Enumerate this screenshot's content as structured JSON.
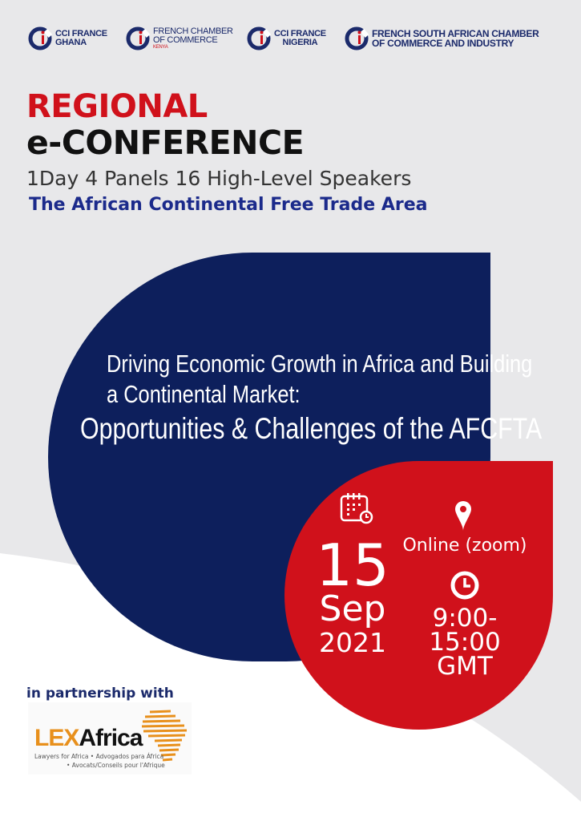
{
  "logos": [
    {
      "line1": "CCI FRANCE",
      "line2": "GHANA"
    },
    {
      "line1": "FRENCH CHAMBER",
      "line2": "OF COMMERCE",
      "line3": "KENYA"
    },
    {
      "line1": "CCI FRANCE",
      "line2": "NIGERIA"
    },
    {
      "line1": "FRENCH SOUTH AFRICAN CHAMBER",
      "line2": "OF COMMERCE AND INDUSTRY"
    }
  ],
  "header": {
    "title_red": "REGIONAL",
    "title_black": "e-CONFERENCE",
    "subtitle": "1Day 4 Panels 16 High-Level Speakers",
    "theme": "The African Continental Free Trade Area"
  },
  "topic": {
    "line1": "Driving Economic Growth in Africa and Building",
    "line2": "a Continental Market:",
    "line3": "Opportunities & Challenges of the AFCFTA"
  },
  "event": {
    "day": "15",
    "month": "Sep",
    "year": "2021",
    "location": "Online (zoom)",
    "time_start": "9:00-",
    "time_end": "15:00",
    "timezone": "GMT"
  },
  "partner": {
    "label": "in partnership with",
    "logo_lex": "LEX",
    "logo_africa": "Africa",
    "tagline1": "Lawyers for Africa • Advogados para África",
    "tagline2": "• Avocats/Conseils pour l'Afrique"
  },
  "colors": {
    "navy": "#0d1f5c",
    "red": "#d0111b",
    "orange": "#e8901c",
    "background": "#e8e8ea"
  }
}
